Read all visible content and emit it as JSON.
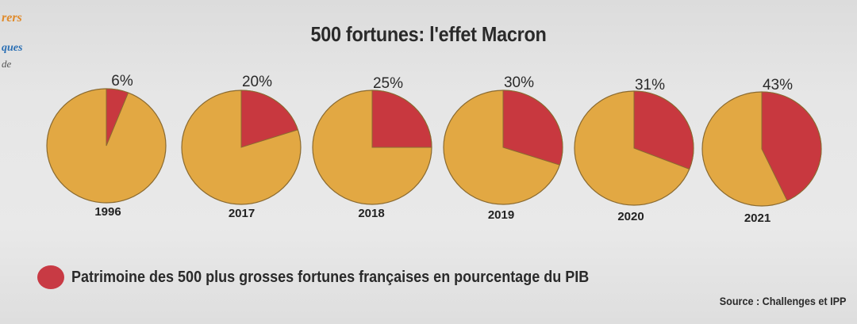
{
  "margin_fragments": {
    "line1": "rers",
    "line2": "ques",
    "line3": "de"
  },
  "chart_data": {
    "type": "pie",
    "title": "500 fortunes: l'effet Macron",
    "categories": [
      "1996",
      "2017",
      "2018",
      "2019",
      "2020",
      "2021"
    ],
    "values": [
      6,
      20,
      25,
      30,
      31,
      43
    ],
    "value_labels": [
      "6%",
      "20%",
      "25%",
      "30%",
      "31%",
      "43%"
    ],
    "legend": "Patrimoine des 500 plus grosses fortunes françaises en pourcentage du PIB",
    "legend_placement": "bottom-left",
    "source": "Source : Challenges et IPP",
    "colors": {
      "share": "#c8383f",
      "rest": "#e2a843",
      "outline": "#8a6a30"
    }
  }
}
